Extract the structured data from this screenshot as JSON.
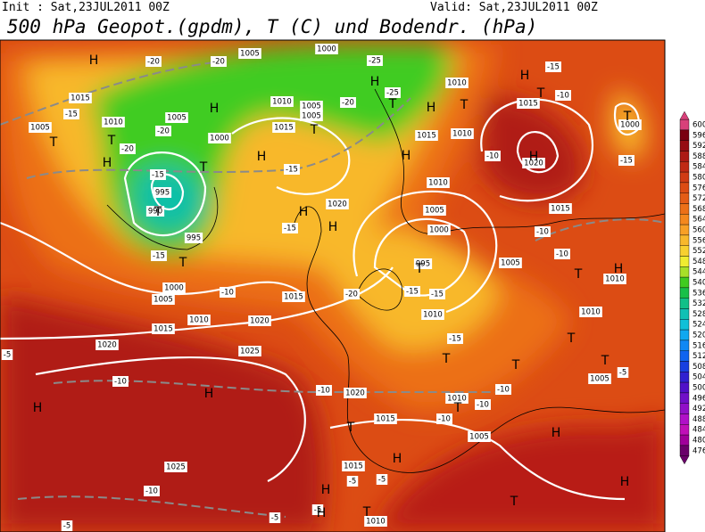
{
  "header": {
    "init": "Init : Sat,23JUL2011 00Z",
    "valid": "Valid: Sat,23JUL2011 00Z",
    "title": "500 hPa Geopot.(gpdm), T (C) und Bodendr. (hPa)"
  },
  "colorbar": {
    "levels": [
      {
        "label": "600",
        "color": "#d8407a"
      },
      {
        "label": "596",
        "color": "#7a0010"
      },
      {
        "label": "592",
        "color": "#960c12"
      },
      {
        "label": "588",
        "color": "#ac1a14"
      },
      {
        "label": "584",
        "color": "#c02a14"
      },
      {
        "label": "580",
        "color": "#d03c14"
      },
      {
        "label": "576",
        "color": "#dc4c14"
      },
      {
        "label": "572",
        "color": "#e45c16"
      },
      {
        "label": "568",
        "color": "#ec7018"
      },
      {
        "label": "564",
        "color": "#f4881e"
      },
      {
        "label": "560",
        "color": "#f8a026"
      },
      {
        "label": "556",
        "color": "#f8b82c"
      },
      {
        "label": "552",
        "color": "#f8d030"
      },
      {
        "label": "548",
        "color": "#f0ec30"
      },
      {
        "label": "544",
        "color": "#a8e028"
      },
      {
        "label": "540",
        "color": "#40cc20"
      },
      {
        "label": "536",
        "color": "#18c048"
      },
      {
        "label": "532",
        "color": "#10c088"
      },
      {
        "label": "528",
        "color": "#10c0b4"
      },
      {
        "label": "524",
        "color": "#10c0d8"
      },
      {
        "label": "520",
        "color": "#10a8f0"
      },
      {
        "label": "516",
        "color": "#1088f4"
      },
      {
        "label": "512",
        "color": "#1064f0"
      },
      {
        "label": "508",
        "color": "#1840e0"
      },
      {
        "label": "504",
        "color": "#3020d0"
      },
      {
        "label": "500",
        "color": "#5010c8"
      },
      {
        "label": "496",
        "color": "#7010c8"
      },
      {
        "label": "492",
        "color": "#9010c8"
      },
      {
        "label": "488",
        "color": "#b010c8"
      },
      {
        "label": "484",
        "color": "#c010b8"
      },
      {
        "label": "480",
        "color": "#a0009a"
      },
      {
        "label": "476",
        "color": "#6a006a"
      }
    ]
  },
  "map": {
    "centers": [
      "H",
      "H",
      "H",
      "H",
      "H",
      "T",
      "T",
      "T",
      "T",
      "T",
      "T",
      "H",
      "H",
      "T",
      "H",
      "T",
      "H",
      "T",
      "T",
      "H",
      "H",
      "T",
      "H",
      "H",
      "T",
      "T",
      "T",
      "H",
      "T",
      "H",
      "H",
      "T",
      "H",
      "H",
      "T",
      "T",
      "T",
      "H",
      "T"
    ],
    "isobars": [
      "1015",
      "1010",
      "1005",
      "1005",
      "1000",
      "995",
      "990",
      "995",
      "1000",
      "1005",
      "1010",
      "1015",
      "1020",
      "1025",
      "1020",
      "1015",
      "1010",
      "1015",
      "1005",
      "1005",
      "1000",
      "1005",
      "1010",
      "1015",
      "1010",
      "1015",
      "1010",
      "1005",
      "1000",
      "995",
      "1005",
      "1010",
      "1015",
      "1020",
      "1020",
      "1015",
      "1010",
      "1005",
      "1015",
      "1010",
      "1025",
      "1010",
      "1010",
      "1005",
      "1000",
      "1020"
    ],
    "temperatures": [
      "-20",
      "-20",
      "-15",
      "-20",
      "-20",
      "-15",
      "-15",
      "-10",
      "-15",
      "-15",
      "-20",
      "-15",
      "-15",
      "-15",
      "-10",
      "-10",
      "-15",
      "-15",
      "-10",
      "-10",
      "-10",
      "-10",
      "-10",
      "-10",
      "-10",
      "-10",
      "-5",
      "-5",
      "-5",
      "-5",
      "-5",
      "-25",
      "-25",
      "-20",
      "-5",
      "-5"
    ]
  }
}
